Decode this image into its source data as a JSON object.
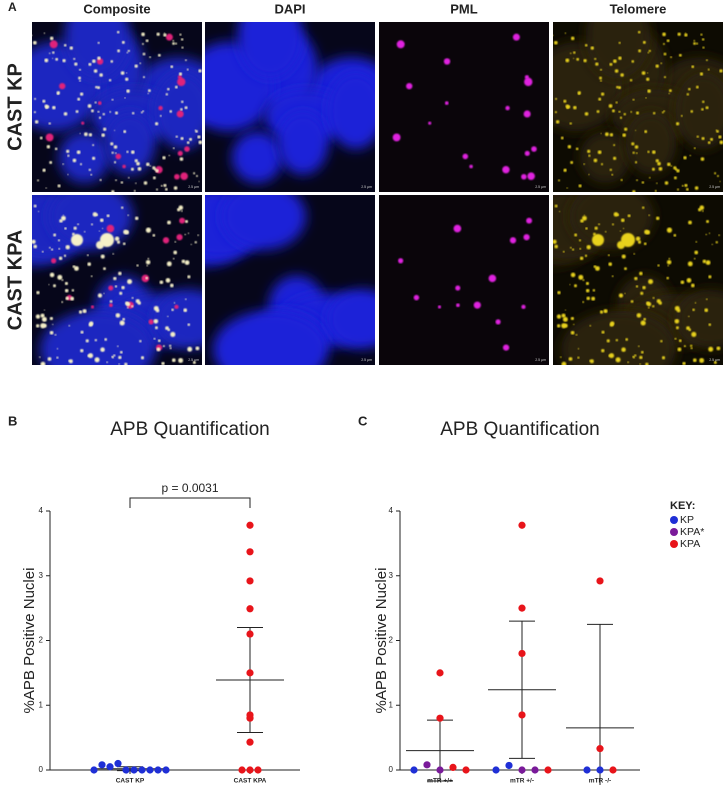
{
  "figure": {
    "panel_labels": [
      "A",
      "B",
      "C"
    ],
    "columns": [
      "Composite",
      "DAPI",
      "PML",
      "Telomere"
    ],
    "rows": [
      "CAST KP",
      "CAST KPA"
    ],
    "scale_bar": "2.5 µm"
  },
  "chart_data": [
    {
      "type": "scatter",
      "title": "APB Quantification",
      "y_label": "%APB Positive Nuclei",
      "categories": [
        "CAST KP",
        "CAST KPA"
      ],
      "series": [
        {
          "color": "#1f2fd6",
          "x": [
            "CAST KP",
            "CAST KP",
            "CAST KP",
            "CAST KP",
            "CAST KP",
            "CAST KP",
            "CAST KP",
            "CAST KP",
            "CAST KP",
            "CAST KP"
          ],
          "values": [
            0,
            0.08,
            0.05,
            0.1,
            0,
            0,
            0,
            0,
            0,
            0
          ]
        },
        {
          "color": "#e8141a",
          "x": [
            "CAST KPA",
            "CAST KPA",
            "CAST KPA",
            "CAST KPA",
            "CAST KPA",
            "CAST KPA",
            "CAST KPA",
            "CAST KPA",
            "CAST KPA",
            "CAST KPA",
            "CAST KPA",
            "CAST KPA"
          ],
          "values": [
            3.78,
            3.37,
            2.92,
            2.49,
            2.1,
            1.5,
            0.8,
            0.85,
            0.43,
            0,
            0,
            0
          ]
        }
      ],
      "means": [
        0.02,
        1.39
      ],
      "errors": [
        0.03,
        0.81
      ],
      "annotation": "p = 0.0031",
      "ylim": [
        0,
        4
      ],
      "yticks": [
        0,
        1,
        2,
        3,
        4
      ]
    },
    {
      "type": "scatter",
      "title": "APB Quantification",
      "y_label": "%APB Positive Nuclei",
      "categories": [
        "mTR +/+",
        "mTR +/-",
        "mTR -/-"
      ],
      "series": [
        {
          "name": "KP",
          "color": "#1f2fd6",
          "x": [
            "mTR +/+",
            "mTR +/-",
            "mTR +/-",
            "mTR -/-",
            "mTR -/-"
          ],
          "values": [
            0,
            0,
            0.07,
            0,
            0
          ]
        },
        {
          "name": "KPA*",
          "color": "#7a1a9a",
          "x": [
            "mTR +/+",
            "mTR +/+",
            "mTR +/-",
            "mTR +/-"
          ],
          "values": [
            0.08,
            0,
            0,
            0
          ]
        },
        {
          "name": "KPA",
          "color": "#e8141a",
          "x": [
            "mTR +/+",
            "mTR +/+",
            "mTR +/+",
            "mTR +/+",
            "mTR +/-",
            "mTR +/-",
            "mTR +/-",
            "mTR +/-",
            "mTR +/-",
            "mTR -/-",
            "mTR -/-",
            "mTR -/-"
          ],
          "values": [
            1.5,
            0.8,
            0.04,
            0,
            3.78,
            2.5,
            1.8,
            0.85,
            0,
            2.92,
            0.33,
            0
          ]
        }
      ],
      "means": [
        0.3,
        1.24,
        0.65
      ],
      "errors": [
        0.47,
        1.06,
        1.6
      ],
      "legend_title": "KEY:",
      "legend": "right",
      "ylim": [
        0,
        4
      ],
      "yticks": [
        0,
        1,
        2,
        3,
        4
      ]
    }
  ]
}
